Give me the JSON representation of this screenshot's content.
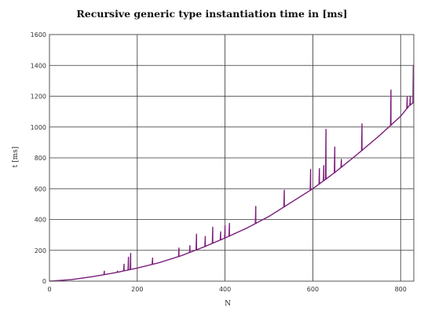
{
  "chart_data": {
    "type": "line",
    "title": "Recursive generic type instantiation time in [ms]",
    "xlabel": "N",
    "ylabel": "t [ms]",
    "xlim": [
      0,
      830
    ],
    "ylim": [
      0,
      1600
    ],
    "xticks": [
      0,
      200,
      400,
      600,
      800
    ],
    "yticks": [
      0,
      200,
      400,
      600,
      800,
      1000,
      1200,
      1400,
      1600
    ],
    "grid": true,
    "legend": "none",
    "series": [
      {
        "color": "#7b1e7a",
        "trend": {
          "x": [
            0,
            50,
            100,
            150,
            200,
            250,
            300,
            350,
            400,
            450,
            500,
            550,
            600,
            650,
            700,
            750,
            800,
            820,
            830
          ],
          "y": [
            0,
            10,
            30,
            55,
            85,
            120,
            165,
            220,
            280,
            345,
            420,
            510,
            600,
            705,
            820,
            940,
            1070,
            1140,
            1160
          ]
        },
        "spikes": [
          {
            "x": 125,
            "y": 65
          },
          {
            "x": 155,
            "y": 65
          },
          {
            "x": 170,
            "y": 110
          },
          {
            "x": 180,
            "y": 155
          },
          {
            "x": 185,
            "y": 180
          },
          {
            "x": 235,
            "y": 150
          },
          {
            "x": 295,
            "y": 215
          },
          {
            "x": 320,
            "y": 230
          },
          {
            "x": 335,
            "y": 305
          },
          {
            "x": 355,
            "y": 290
          },
          {
            "x": 372,
            "y": 350
          },
          {
            "x": 390,
            "y": 320
          },
          {
            "x": 400,
            "y": 360
          },
          {
            "x": 410,
            "y": 375
          },
          {
            "x": 470,
            "y": 485
          },
          {
            "x": 535,
            "y": 590
          },
          {
            "x": 595,
            "y": 725
          },
          {
            "x": 615,
            "y": 730
          },
          {
            "x": 625,
            "y": 750
          },
          {
            "x": 630,
            "y": 985
          },
          {
            "x": 650,
            "y": 870
          },
          {
            "x": 665,
            "y": 790
          },
          {
            "x": 712,
            "y": 1020
          },
          {
            "x": 778,
            "y": 1240
          },
          {
            "x": 815,
            "y": 1195
          },
          {
            "x": 822,
            "y": 1200
          },
          {
            "x": 829,
            "y": 1400
          }
        ]
      }
    ]
  }
}
